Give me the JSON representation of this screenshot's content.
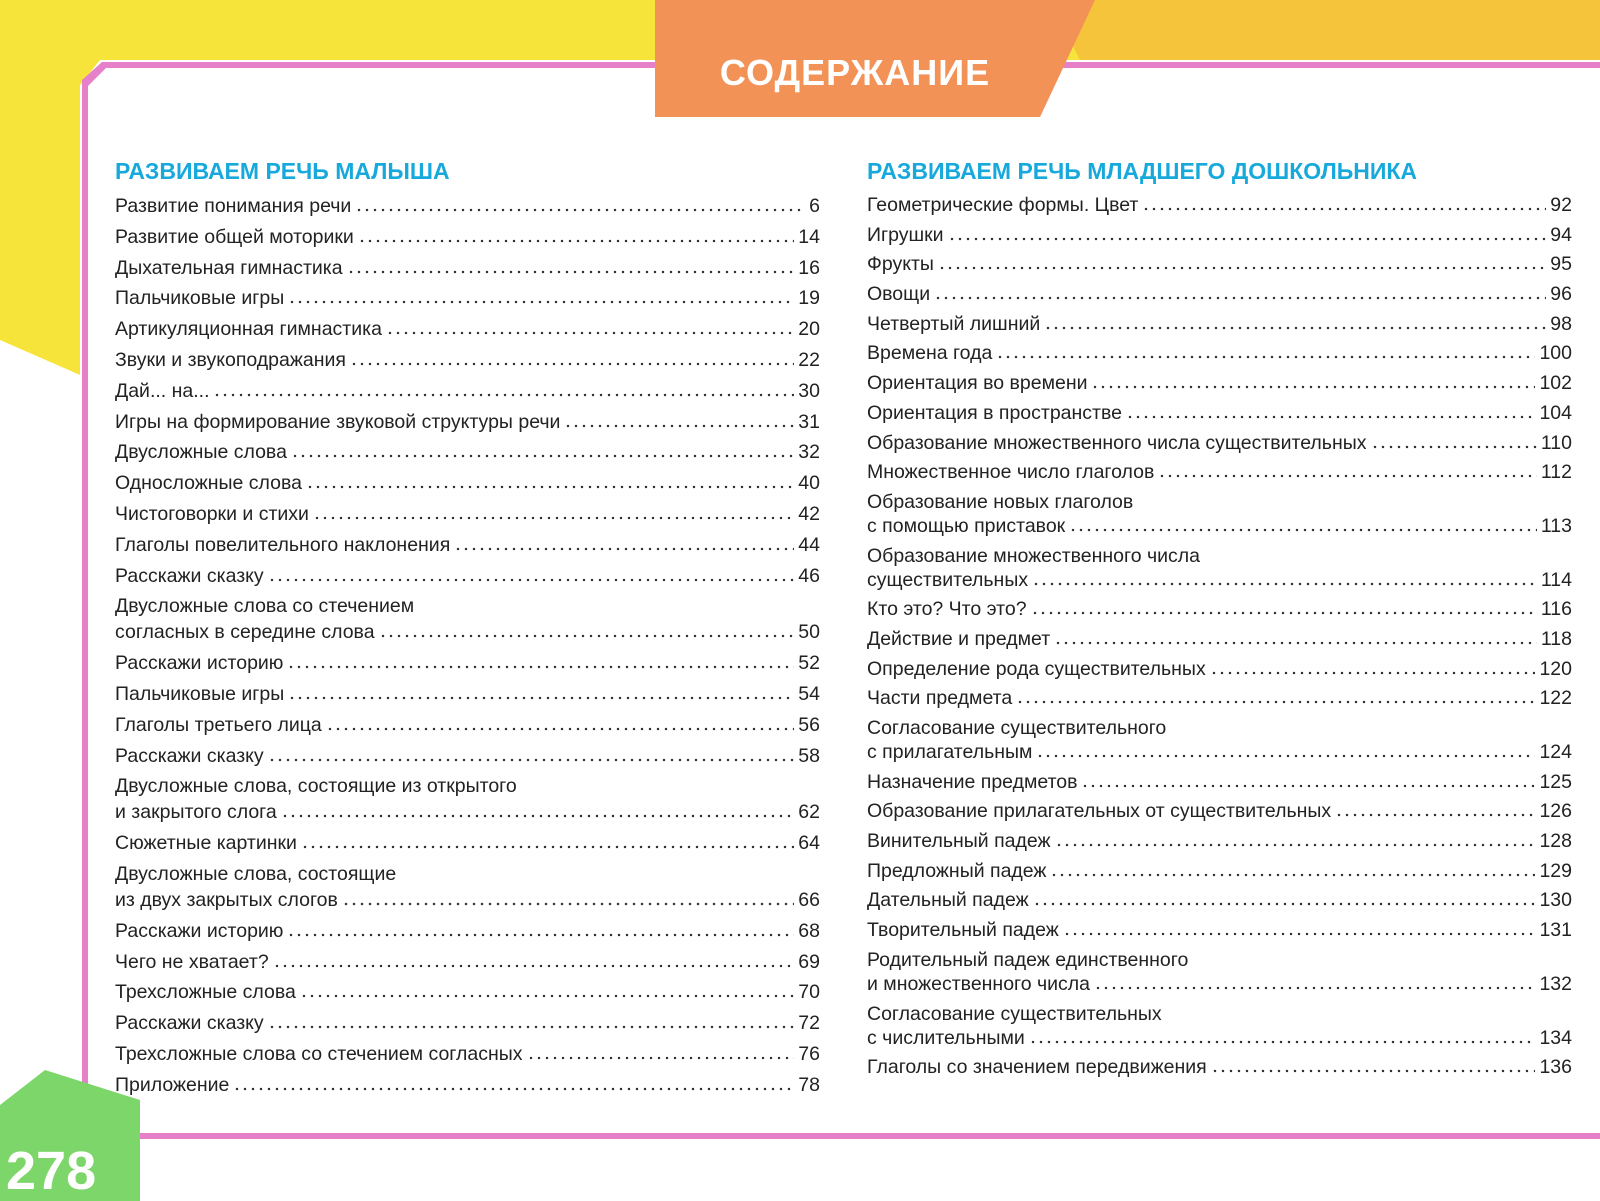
{
  "header": {
    "title": "СОДЕРЖАНИЕ",
    "page_number": "278"
  },
  "toc": {
    "columns": [
      {
        "heading": "РАЗВИВАЕМ РЕЧЬ МАЛЫША",
        "entries": [
          {
            "lines": [
              "Развитие понимания речи"
            ],
            "page": 6
          },
          {
            "lines": [
              "Развитие общей моторики"
            ],
            "page": 14
          },
          {
            "lines": [
              "Дыхательная гимнастика"
            ],
            "page": 16
          },
          {
            "lines": [
              "Пальчиковые игры"
            ],
            "page": 19
          },
          {
            "lines": [
              "Артикуляционная гимнастика"
            ],
            "page": 20
          },
          {
            "lines": [
              "Звуки и звукоподражания"
            ],
            "page": 22
          },
          {
            "lines": [
              "Дай... на..."
            ],
            "page": 30
          },
          {
            "lines": [
              "Игры на формирование звуковой структуры речи"
            ],
            "page": 31
          },
          {
            "lines": [
              "Двусложные слова"
            ],
            "page": 32
          },
          {
            "lines": [
              "Односложные слова"
            ],
            "page": 40
          },
          {
            "lines": [
              "Чистоговорки и стихи"
            ],
            "page": 42
          },
          {
            "lines": [
              "Глаголы повелительного наклонения"
            ],
            "page": 44
          },
          {
            "lines": [
              "Расскажи сказку"
            ],
            "page": 46
          },
          {
            "lines": [
              "Двусложные слова со стечением",
              "согласных в середине слова"
            ],
            "page": 50
          },
          {
            "lines": [
              "Расскажи историю"
            ],
            "page": 52
          },
          {
            "lines": [
              "Пальчиковые игры"
            ],
            "page": 54
          },
          {
            "lines": [
              "Глаголы третьего лица"
            ],
            "page": 56
          },
          {
            "lines": [
              "Расскажи сказку"
            ],
            "page": 58
          },
          {
            "lines": [
              "Двусложные слова, состоящие из открытого",
              "и закрытого слога"
            ],
            "page": 62
          },
          {
            "lines": [
              "Сюжетные картинки"
            ],
            "page": 64
          },
          {
            "lines": [
              "Двусложные слова, состоящие",
              "из двух закрытых слогов"
            ],
            "page": 66
          },
          {
            "lines": [
              "Расскажи историю"
            ],
            "page": 68
          },
          {
            "lines": [
              "Чего не хватает?"
            ],
            "page": 69
          },
          {
            "lines": [
              "Трехсложные слова"
            ],
            "page": 70
          },
          {
            "lines": [
              "Расскажи сказку"
            ],
            "page": 72
          },
          {
            "lines": [
              "Трехсложные слова со стечением согласных"
            ],
            "page": 76
          },
          {
            "lines": [
              "Приложение"
            ],
            "page": 78
          }
        ]
      },
      {
        "heading": "РАЗВИВАЕМ РЕЧЬ МЛАДШЕГО ДОШКОЛЬНИКА",
        "entries": [
          {
            "lines": [
              "Геометрические формы. Цвет"
            ],
            "page": 92
          },
          {
            "lines": [
              "Игрушки"
            ],
            "page": 94
          },
          {
            "lines": [
              "Фрукты"
            ],
            "page": 95
          },
          {
            "lines": [
              "Овощи"
            ],
            "page": 96
          },
          {
            "lines": [
              "Четвертый лишний"
            ],
            "page": 98
          },
          {
            "lines": [
              "Времена года"
            ],
            "page": 100
          },
          {
            "lines": [
              "Ориентация во времени"
            ],
            "page": 102
          },
          {
            "lines": [
              "Ориентация в пространстве"
            ],
            "page": 104
          },
          {
            "lines": [
              "Образование множественного числа существительных"
            ],
            "page": 110
          },
          {
            "lines": [
              "Множественное число глаголов"
            ],
            "page": 112
          },
          {
            "lines": [
              "Образование новых глаголов",
              "с помощью приставок"
            ],
            "page": 113
          },
          {
            "lines": [
              "Образование множественного числа",
              "существительных"
            ],
            "page": 114
          },
          {
            "lines": [
              "Кто это? Что это?"
            ],
            "page": 116
          },
          {
            "lines": [
              "Действие и предмет"
            ],
            "page": 118
          },
          {
            "lines": [
              "Определение рода существительных"
            ],
            "page": 120
          },
          {
            "lines": [
              "Части предмета"
            ],
            "page": 122
          },
          {
            "lines": [
              "Согласование существительного",
              "с прилагательным"
            ],
            "page": 124
          },
          {
            "lines": [
              "Назначение предметов"
            ],
            "page": 125
          },
          {
            "lines": [
              "Образование прилагательных от существительных"
            ],
            "page": 126
          },
          {
            "lines": [
              "Винительный падеж"
            ],
            "page": 128
          },
          {
            "lines": [
              "Предложный падеж"
            ],
            "page": 129
          },
          {
            "lines": [
              "Дательный падеж"
            ],
            "page": 130
          },
          {
            "lines": [
              "Творительный падеж"
            ],
            "page": 131
          },
          {
            "lines": [
              "Родительный падеж единственного",
              "и множественного числа"
            ],
            "page": 132
          },
          {
            "lines": [
              "Согласование существительных",
              "с числительными"
            ],
            "page": 134
          },
          {
            "lines": [
              "Глаголы со значением передвижения"
            ],
            "page": 136
          }
        ]
      }
    ]
  }
}
